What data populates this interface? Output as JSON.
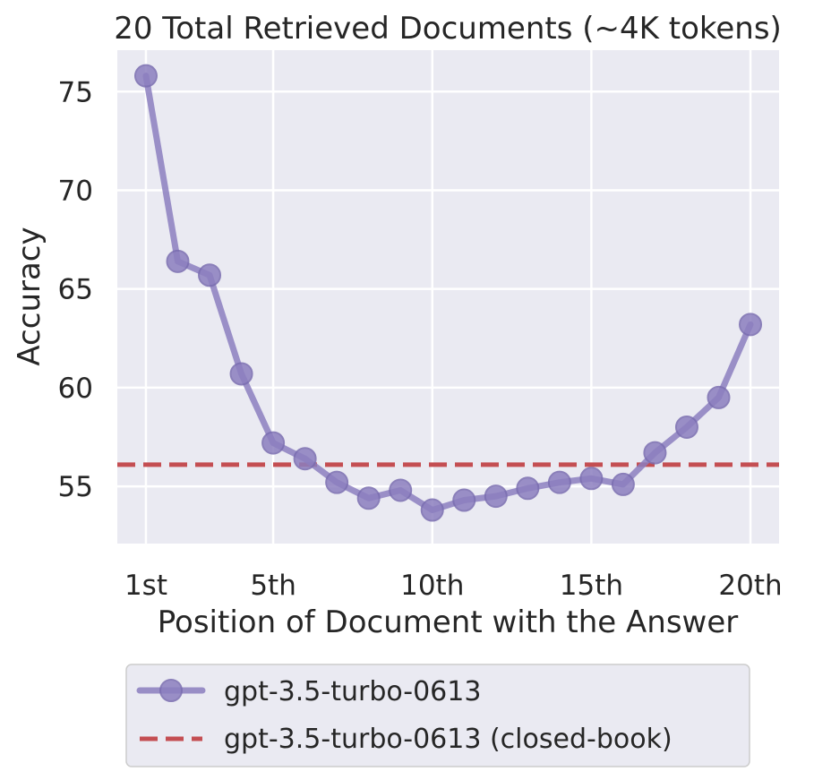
{
  "chart_data": {
    "type": "line",
    "title": "20 Total Retrieved Documents (~4K tokens)",
    "xlabel": "Position of Document with the Answer",
    "ylabel": "Accuracy",
    "x": [
      1,
      2,
      3,
      4,
      5,
      6,
      7,
      8,
      9,
      10,
      11,
      12,
      13,
      14,
      15,
      16,
      17,
      18,
      19,
      20
    ],
    "xticks": [
      1,
      5,
      10,
      15,
      20
    ],
    "xtick_labels": [
      "1st",
      "5th",
      "10th",
      "15th",
      "20th"
    ],
    "xlim": [
      0.1,
      20.9
    ],
    "yticks": [
      55,
      60,
      65,
      70,
      75
    ],
    "ylim": [
      52.1,
      77.1
    ],
    "grid": true,
    "legend_placement": "below",
    "series": [
      {
        "name": "gpt-3.5-turbo-0613",
        "values": [
          75.8,
          66.4,
          65.7,
          60.7,
          57.2,
          56.4,
          55.2,
          54.4,
          54.8,
          53.8,
          54.3,
          54.5,
          54.9,
          55.2,
          55.4,
          55.1,
          56.7,
          58.0,
          59.5,
          63.2
        ],
        "color": "#8c7fbf",
        "style": "solid-markers"
      }
    ],
    "reference_lines": [
      {
        "name": "gpt-3.5-turbo-0613 (closed-book)",
        "value": 56.1,
        "color": "#c44e52",
        "style": "dashed"
      }
    ],
    "background_color": "#eaeaf2",
    "grid_color": "#ffffff"
  }
}
